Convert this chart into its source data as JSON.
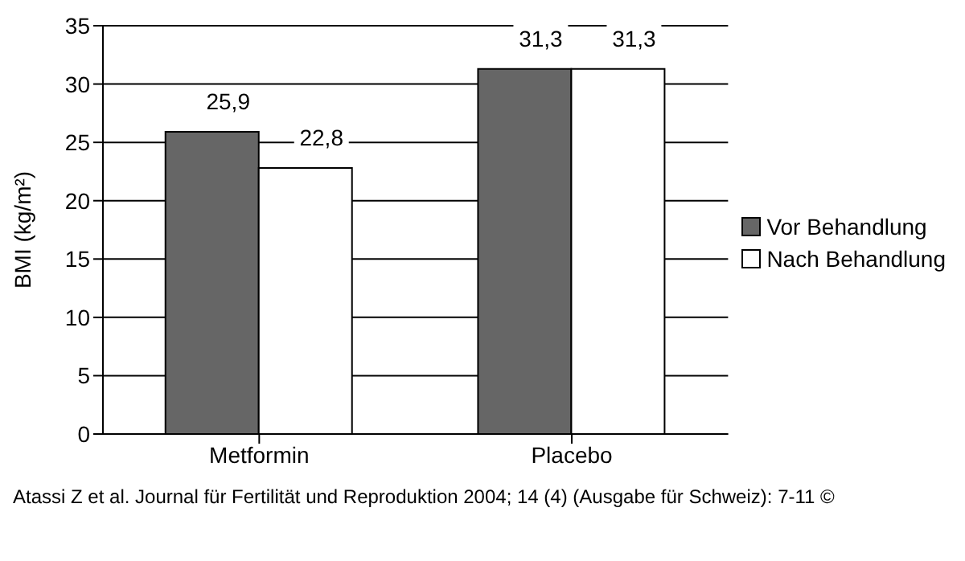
{
  "chart_data": {
    "type": "bar",
    "ylabel": "BMI (kg/m²)",
    "categories": [
      "Metformin",
      "Placebo"
    ],
    "series": [
      {
        "name": "Vor Behandlung",
        "color": "#666666",
        "values": [
          25.9,
          31.3
        ],
        "value_labels": [
          "25,9",
          "31,3"
        ]
      },
      {
        "name": "Nach Behandlung",
        "color": "#ffffff",
        "values": [
          22.8,
          31.3
        ],
        "value_labels": [
          "22,8",
          "31,3"
        ]
      }
    ],
    "ylim": [
      0,
      35
    ],
    "yticks": [
      0,
      5,
      10,
      15,
      20,
      25,
      30,
      35
    ],
    "grid": "y",
    "legend": "right",
    "annotations": [
      "Atassi Z et al. Journal für Fertilität und Reproduktion 2004; 14 (4) (Ausgabe für Schweiz): 7-11 ©"
    ]
  }
}
